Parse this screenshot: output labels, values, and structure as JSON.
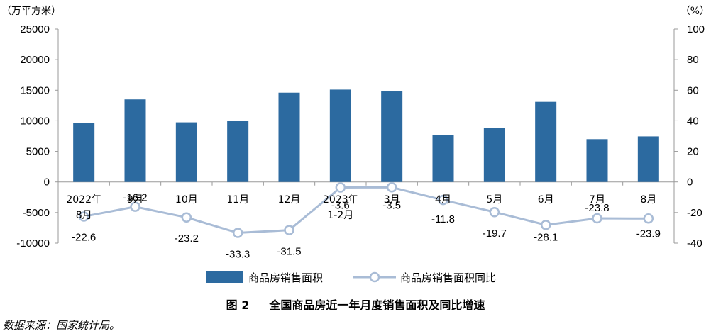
{
  "chart_data": {
    "type": "bar+line",
    "y_left_unit": "（万平方米）",
    "y_right_unit": "（%）",
    "y_left_ticks": [
      "25000",
      "20000",
      "15000",
      "10000",
      "5000",
      "0",
      "-5000",
      "-10000"
    ],
    "y_right_ticks": [
      "100",
      "80",
      "60",
      "40",
      "20",
      "0",
      "-20",
      "-40"
    ],
    "ylim_left": [
      -10000,
      25000
    ],
    "ylim_right": [
      -40,
      100
    ],
    "categories": [
      "2022年8月",
      "9月",
      "10月",
      "11月",
      "12月",
      "2023年1-2月",
      "3月",
      "4月",
      "5月",
      "6月",
      "7月",
      "8月"
    ],
    "category_labels": [
      [
        "2022年",
        "8月"
      ],
      [
        "9月"
      ],
      [
        "10月"
      ],
      [
        "11月"
      ],
      [
        "12月"
      ],
      [
        "2023年",
        "1-2月"
      ],
      [
        "3月"
      ],
      [
        "4月"
      ],
      [
        "5月"
      ],
      [
        "6月"
      ],
      [
        "7月"
      ],
      [
        "8月"
      ]
    ],
    "series": [
      {
        "name": "商品房销售面积",
        "type": "bar",
        "axis": "left",
        "color": "#2c6aa0",
        "values": [
          9600,
          13500,
          9750,
          10050,
          14600,
          15100,
          14800,
          7700,
          8850,
          13100,
          7000,
          7450
        ]
      },
      {
        "name": "商品房销售面积同比",
        "type": "line",
        "axis": "right",
        "color": "#a9bcd6",
        "values": [
          -22.6,
          -16.2,
          -23.2,
          -33.3,
          -31.5,
          -3.6,
          -3.5,
          -11.8,
          -19.7,
          -28.1,
          -23.8,
          -23.9
        ],
        "labels": [
          "-22.6",
          "-16.2",
          "-23.2",
          "-33.3",
          "-31.5",
          "-3.6",
          "-3.5",
          "-11.8",
          "-19.7",
          "-28.1",
          "-23.8",
          "-23.9"
        ]
      }
    ],
    "legend": [
      "商品房销售面积",
      "商品房销售面积同比"
    ],
    "legend_position": "bottom",
    "grid": false
  },
  "caption": {
    "number": "图 2",
    "text": "全国商品房近一年月度销售面积及同比增速"
  },
  "source": "数据来源：国家统计局。"
}
